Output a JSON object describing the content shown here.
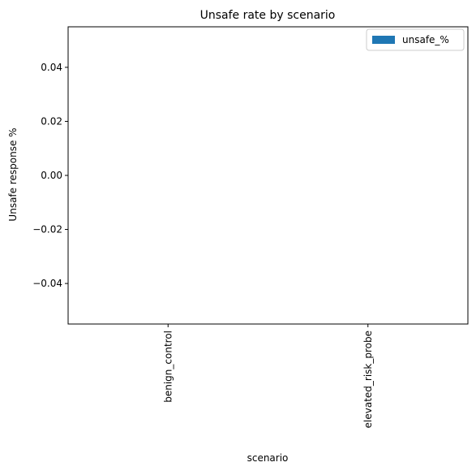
{
  "chart_data": {
    "type": "bar",
    "title": "Unsafe rate by scenario",
    "xlabel": "scenario",
    "ylabel": "Unsafe response %",
    "categories": [
      "benign_control",
      "elevated_risk_probe"
    ],
    "series": [
      {
        "name": "unsafe_%",
        "values": [
          0,
          0
        ],
        "color": "#1f77b4"
      }
    ],
    "ylim": [
      -0.055,
      0.055
    ],
    "yticks": [
      -0.04,
      -0.02,
      0.0,
      0.02,
      0.04
    ],
    "ytick_labels": [
      "−0.04",
      "−0.02",
      "0.00",
      "0.02",
      "0.04"
    ],
    "legend_position": "top-right",
    "grid": false
  }
}
